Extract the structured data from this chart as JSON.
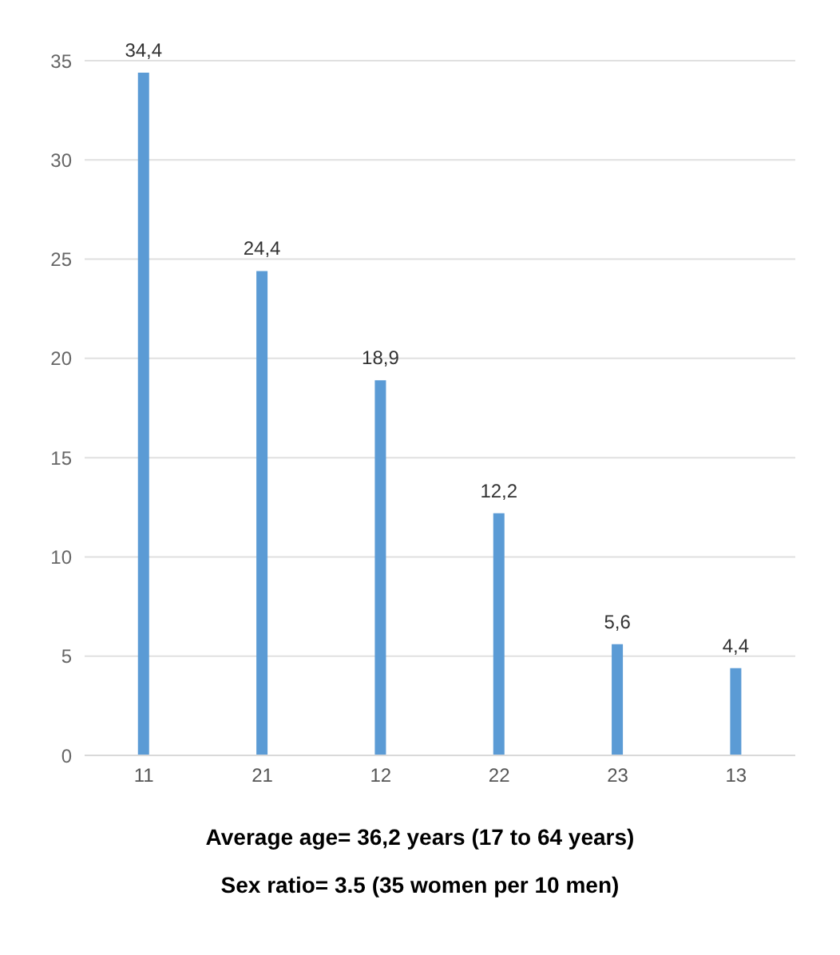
{
  "chart_data": {
    "type": "bar",
    "categories": [
      "11",
      "21",
      "12",
      "22",
      "23",
      "13"
    ],
    "values": [
      34.4,
      24.4,
      18.9,
      12.2,
      5.6,
      4.4
    ],
    "value_labels": [
      "34,4",
      "24,4",
      "18,9",
      "12,2",
      "5,6",
      "4,4"
    ],
    "color": "#5b9bd5",
    "ylim": [
      0,
      35
    ],
    "yticks": [
      0,
      5,
      10,
      15,
      20,
      25,
      30,
      35
    ],
    "grid": "y",
    "legend": false,
    "annotations": [
      "Average age= 36,2 years (17 to 64 years)",
      "Sex ratio= 3.5 (35 women per 10 men)"
    ]
  }
}
